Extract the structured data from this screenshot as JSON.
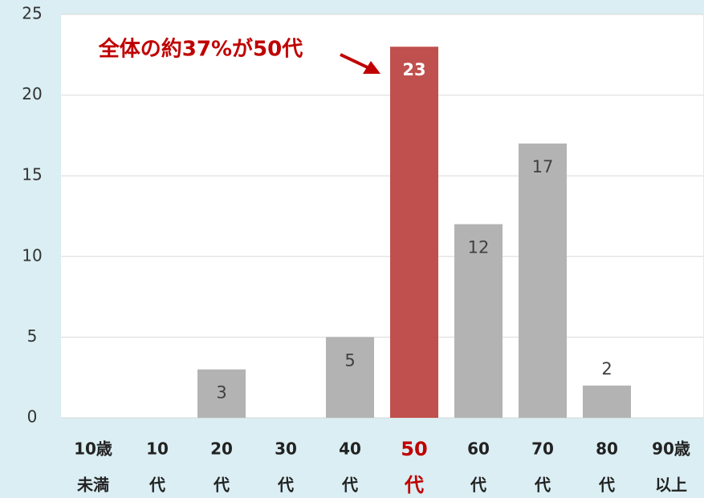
{
  "chart_data": {
    "type": "bar",
    "annotation": "全体の約37%が50代",
    "categories": [
      [
        "10歳",
        "未満"
      ],
      [
        "10",
        "代"
      ],
      [
        "20",
        "代"
      ],
      [
        "30",
        "代"
      ],
      [
        "40",
        "代"
      ],
      [
        "50",
        "代"
      ],
      [
        "60",
        "代"
      ],
      [
        "70",
        "代"
      ],
      [
        "80",
        "代"
      ],
      [
        "90歳",
        "以上"
      ]
    ],
    "values": [
      0,
      0,
      3,
      0,
      5,
      23,
      12,
      17,
      2,
      0
    ],
    "color": "#b3b3b3",
    "highlight_color": "#c0504d",
    "highlight_index": 5,
    "annotation_color": "#c00000",
    "ylim": [
      0,
      25
    ],
    "yticks": [
      0,
      5,
      10,
      15,
      20,
      25
    ],
    "grid": true
  }
}
